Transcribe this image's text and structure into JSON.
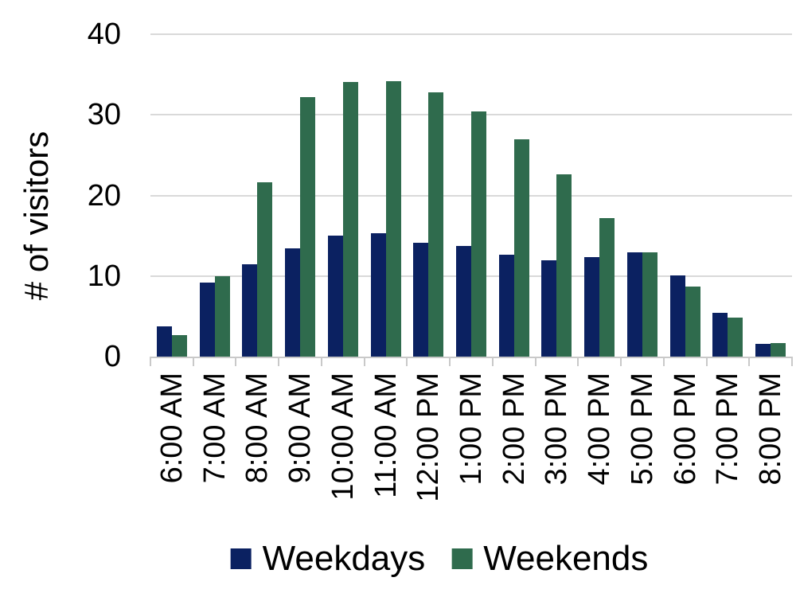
{
  "chart_data": {
    "type": "bar",
    "title": "",
    "xlabel": "",
    "ylabel": "# of visitors",
    "ylim": [
      0,
      40
    ],
    "yticks": [
      0,
      10,
      20,
      30,
      40
    ],
    "grid": true,
    "legend_position": "bottom",
    "categories": [
      "6:00 AM",
      "7:00 AM",
      "8:00 AM",
      "9:00 AM",
      "10:00 AM",
      "11:00 AM",
      "12:00 PM",
      "1:00 PM",
      "2:00 PM",
      "3:00 PM",
      "4:00 PM",
      "5:00 PM",
      "6:00 PM",
      "7:00 PM",
      "8:00 PM"
    ],
    "series": [
      {
        "name": "Weekdays",
        "color": "#0b2161",
        "values": [
          3.8,
          9.2,
          11.5,
          13.4,
          15.0,
          15.3,
          14.1,
          13.7,
          12.6,
          12.0,
          12.3,
          12.9,
          10.1,
          5.4,
          1.6
        ]
      },
      {
        "name": "Weekends",
        "color": "#2f6b4d",
        "values": [
          2.7,
          10.0,
          21.6,
          32.2,
          34.1,
          34.2,
          32.8,
          30.4,
          27.0,
          22.6,
          17.2,
          12.9,
          8.7,
          4.8,
          1.7
        ]
      }
    ]
  },
  "colors": {
    "gridline": "#d9d9d9",
    "axis": "#c9c9c9",
    "text": "#000000",
    "background": "#ffffff"
  }
}
